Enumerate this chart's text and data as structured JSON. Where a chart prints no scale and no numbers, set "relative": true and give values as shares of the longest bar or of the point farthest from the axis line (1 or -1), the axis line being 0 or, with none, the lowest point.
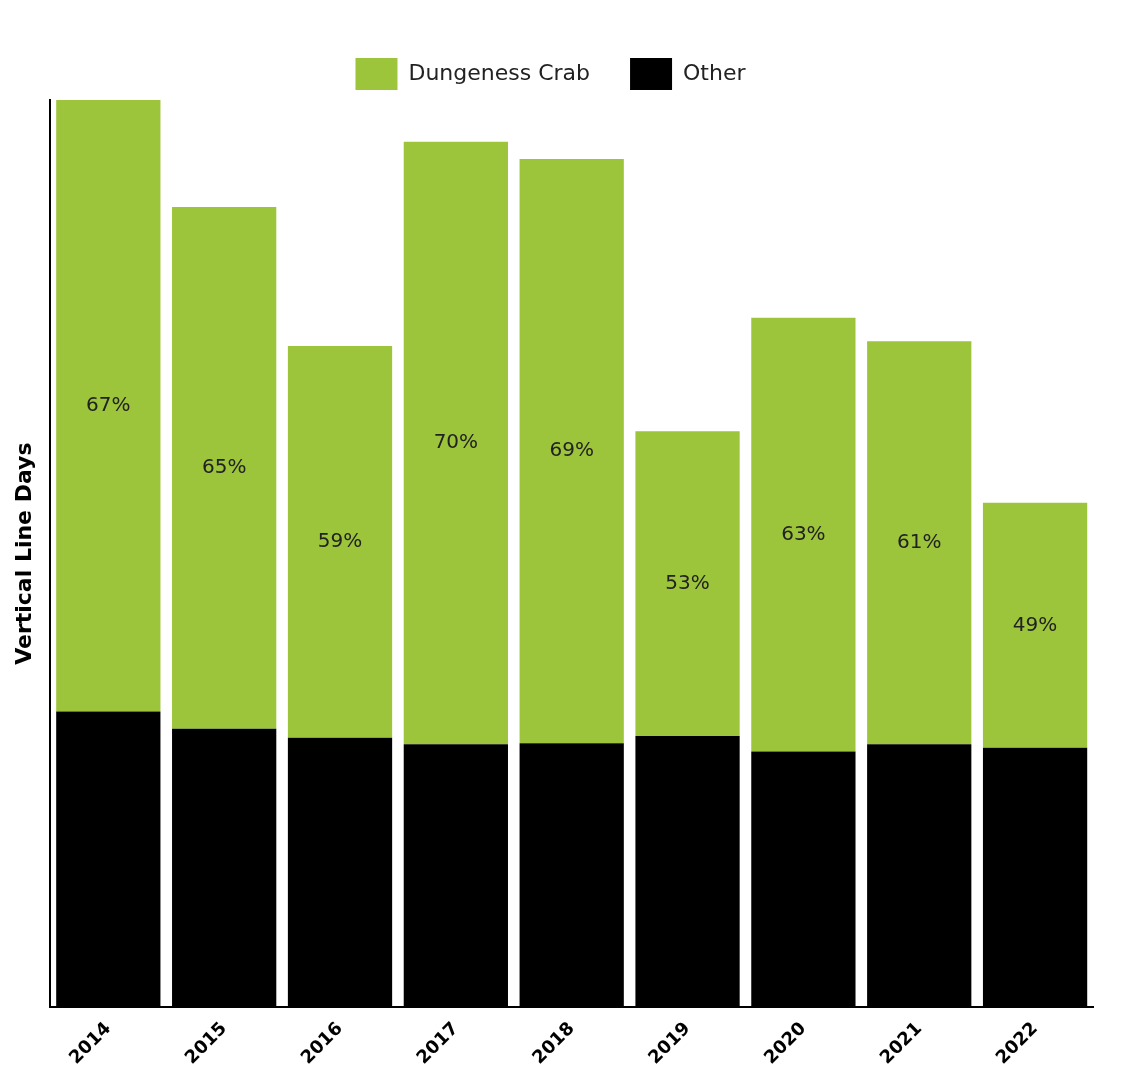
{
  "chart_data": {
    "type": "bar",
    "stacked": true,
    "relative": true,
    "ylabel": "Vertical Line Days",
    "legend": "top",
    "grid": false,
    "categories": [
      "2014",
      "2015",
      "2016",
      "2017",
      "2018",
      "2019",
      "2020",
      "2021",
      "2022"
    ],
    "series": [
      {
        "name": "Other",
        "color": "#000000",
        "values": [
          0.326,
          0.307,
          0.297,
          0.29,
          0.291,
          0.299,
          0.282,
          0.29,
          0.286
        ]
      },
      {
        "name": "Dungeness Crab",
        "color": "#9dc53b",
        "values": [
          0.674,
          0.575,
          0.432,
          0.664,
          0.644,
          0.336,
          0.478,
          0.444,
          0.27
        ]
      }
    ],
    "annotations": [
      "67%",
      "65%",
      "59%",
      "70%",
      "69%",
      "53%",
      "63%",
      "61%",
      "49%"
    ]
  }
}
